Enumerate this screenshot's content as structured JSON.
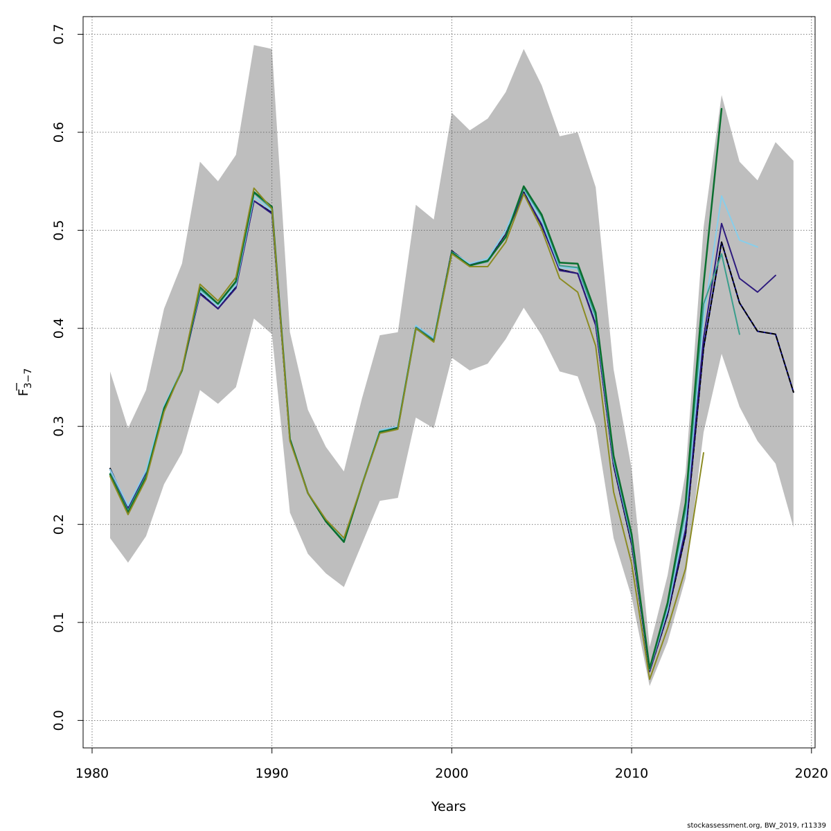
{
  "chart_data": {
    "type": "line",
    "xlabel": "Years",
    "ylabel": {
      "base": "F",
      "sub": "3−7"
    },
    "xlim": [
      1979.5,
      2020.2
    ],
    "ylim": [
      -0.028,
      0.718
    ],
    "xticks": [
      "1980",
      "1990",
      "2000",
      "2010",
      "2020"
    ],
    "yticks": [
      "0.0",
      "0.1",
      "0.2",
      "0.3",
      "0.4",
      "0.5",
      "0.6",
      "0.7"
    ],
    "grid": true,
    "footer": "stockassessment.org, BW_2019, r11339",
    "band": {
      "color": "#bebebe",
      "x": [
        1981,
        1982,
        1983,
        1984,
        1985,
        1986,
        1987,
        1988,
        1989,
        1990,
        1991,
        1992,
        1993,
        1994,
        1995,
        1996,
        1997,
        1998,
        1999,
        2000,
        2001,
        2002,
        2003,
        2004,
        2005,
        2006,
        2007,
        2008,
        2009,
        2010,
        2011,
        2012,
        2013,
        2014,
        2015,
        2016,
        2017,
        2018,
        2019
      ],
      "upper": [
        0.356,
        0.298,
        0.337,
        0.42,
        0.466,
        0.57,
        0.55,
        0.577,
        0.689,
        0.685,
        0.396,
        0.317,
        0.279,
        0.254,
        0.328,
        0.393,
        0.396,
        0.526,
        0.511,
        0.62,
        0.602,
        0.614,
        0.641,
        0.685,
        0.648,
        0.596,
        0.6,
        0.544,
        0.358,
        0.257,
        0.075,
        0.148,
        0.253,
        0.503,
        0.638,
        0.57,
        0.551,
        0.59,
        0.571
      ],
      "lower": [
        0.186,
        0.161,
        0.188,
        0.241,
        0.273,
        0.337,
        0.323,
        0.34,
        0.41,
        0.394,
        0.212,
        0.17,
        0.15,
        0.136,
        0.18,
        0.224,
        0.227,
        0.309,
        0.298,
        0.37,
        0.357,
        0.364,
        0.389,
        0.421,
        0.393,
        0.356,
        0.351,
        0.301,
        0.186,
        0.126,
        0.035,
        0.08,
        0.145,
        0.294,
        0.374,
        0.32,
        0.285,
        0.262,
        0.197
      ]
    },
    "series": [
      {
        "color": "#00008b",
        "width": 2,
        "dash": "",
        "x": [
          1981,
          1982,
          1983,
          1984,
          1985,
          1986,
          1987,
          1988,
          1989,
          1990,
          1991,
          1992,
          1993,
          1994,
          1995,
          1996,
          1997,
          1998,
          1999,
          2000,
          2001,
          2002,
          2003,
          2004,
          2005,
          2006,
          2007,
          2008,
          2009,
          2010,
          2011,
          2012,
          2013,
          2014,
          2015,
          2016,
          2017,
          2018,
          2019
        ],
        "y": [
          0.257,
          0.217,
          0.253,
          0.32,
          0.358,
          0.436,
          0.42,
          0.442,
          0.53,
          0.518,
          0.287,
          0.232,
          0.203,
          0.184,
          0.24,
          0.295,
          0.299,
          0.402,
          0.389,
          0.479,
          0.465,
          0.469,
          0.496,
          0.539,
          0.505,
          0.46,
          0.456,
          0.404,
          0.26,
          0.18,
          0.05,
          0.108,
          0.19,
          0.38,
          0.488,
          0.426,
          0.397,
          0.394,
          0.335
        ]
      },
      {
        "color": "#000000",
        "width": 2,
        "dash": "5,4",
        "x": [
          1981,
          1982,
          1983,
          1984,
          1985,
          1986,
          1987,
          1988,
          1989,
          1990,
          1991,
          1992,
          1993,
          1994,
          1995,
          1996,
          1997,
          1998,
          1999,
          2000,
          2001,
          2002,
          2003,
          2004,
          2005,
          2006,
          2007,
          2008,
          2009,
          2010,
          2011,
          2012,
          2013,
          2014,
          2015,
          2016,
          2017,
          2018,
          2019
        ],
        "y": [
          0.257,
          0.217,
          0.253,
          0.32,
          0.358,
          0.436,
          0.42,
          0.442,
          0.53,
          0.518,
          0.287,
          0.232,
          0.203,
          0.184,
          0.24,
          0.295,
          0.299,
          0.402,
          0.389,
          0.479,
          0.465,
          0.469,
          0.496,
          0.539,
          0.505,
          0.46,
          0.456,
          0.404,
          0.26,
          0.18,
          0.05,
          0.108,
          0.19,
          0.38,
          0.488,
          0.426,
          0.397,
          0.394,
          0.335
        ]
      },
      {
        "color": "#2e1b7e",
        "width": 2,
        "dash": "",
        "x": [
          1981,
          1982,
          1983,
          1984,
          1985,
          1986,
          1987,
          1988,
          1989,
          1990,
          1991,
          1992,
          1993,
          1994,
          1995,
          1996,
          1997,
          1998,
          1999,
          2000,
          2001,
          2002,
          2003,
          2004,
          2005,
          2006,
          2007,
          2008,
          2009,
          2010,
          2011,
          2012,
          2013,
          2014,
          2015,
          2016,
          2017,
          2018
        ],
        "y": [
          0.256,
          0.216,
          0.252,
          0.32,
          0.357,
          0.435,
          0.42,
          0.441,
          0.53,
          0.517,
          0.287,
          0.232,
          0.203,
          0.184,
          0.24,
          0.295,
          0.298,
          0.402,
          0.389,
          0.478,
          0.465,
          0.469,
          0.495,
          0.538,
          0.506,
          0.459,
          0.456,
          0.403,
          0.261,
          0.182,
          0.05,
          0.11,
          0.195,
          0.39,
          0.507,
          0.451,
          0.437,
          0.454
        ]
      },
      {
        "color": "#87ceeb",
        "width": 2,
        "dash": "",
        "x": [
          1981,
          1982,
          1983,
          1984,
          1985,
          1986,
          1987,
          1988,
          1989,
          1990,
          1991,
          1992,
          1993,
          1994,
          1995,
          1996,
          1997,
          1998,
          1999,
          2000,
          2001,
          2002,
          2003,
          2004,
          2005,
          2006,
          2007,
          2008,
          2009,
          2010,
          2011,
          2012,
          2013,
          2014,
          2015,
          2016,
          2017
        ],
        "y": [
          0.256,
          0.219,
          0.255,
          0.321,
          0.358,
          0.438,
          0.423,
          0.444,
          0.534,
          0.52,
          0.288,
          0.232,
          0.204,
          0.184,
          0.241,
          0.296,
          0.3,
          0.403,
          0.39,
          0.478,
          0.466,
          0.471,
          0.5,
          0.542,
          0.51,
          0.462,
          0.461,
          0.41,
          0.265,
          0.185,
          0.052,
          0.113,
          0.205,
          0.41,
          0.535,
          0.49,
          0.483
        ]
      },
      {
        "color": "#3a9e8c",
        "width": 2,
        "dash": "",
        "x": [
          1981,
          1982,
          1983,
          1984,
          1985,
          1986,
          1987,
          1988,
          1989,
          1990,
          1991,
          1992,
          1993,
          1994,
          1995,
          1996,
          1997,
          1998,
          1999,
          2000,
          2001,
          2002,
          2003,
          2004,
          2005,
          2006,
          2007,
          2008,
          2009,
          2010,
          2011,
          2012,
          2013,
          2014,
          2015,
          2016
        ],
        "y": [
          0.252,
          0.214,
          0.25,
          0.319,
          0.357,
          0.44,
          0.425,
          0.447,
          0.538,
          0.522,
          0.287,
          0.232,
          0.203,
          0.183,
          0.24,
          0.295,
          0.298,
          0.401,
          0.388,
          0.478,
          0.464,
          0.468,
          0.494,
          0.543,
          0.514,
          0.464,
          0.462,
          0.412,
          0.267,
          0.187,
          0.052,
          0.117,
          0.215,
          0.425,
          0.476,
          0.394
        ]
      },
      {
        "color": "#0a6e2e",
        "width": 2.5,
        "dash": "",
        "x": [
          1981,
          1982,
          1983,
          1984,
          1985,
          1986,
          1987,
          1988,
          1989,
          1990,
          1991,
          1992,
          1993,
          1994,
          1995,
          1996,
          1997,
          1998,
          1999,
          2000,
          2001,
          2002,
          2003,
          2004,
          2005,
          2006,
          2007,
          2008,
          2009,
          2010,
          2011,
          2012,
          2013,
          2014,
          2015
        ],
        "y": [
          0.251,
          0.212,
          0.248,
          0.318,
          0.357,
          0.442,
          0.425,
          0.448,
          0.539,
          0.524,
          0.287,
          0.232,
          0.203,
          0.182,
          0.24,
          0.294,
          0.298,
          0.4,
          0.387,
          0.477,
          0.464,
          0.469,
          0.493,
          0.545,
          0.516,
          0.467,
          0.466,
          0.416,
          0.27,
          0.19,
          0.053,
          0.12,
          0.222,
          0.445,
          0.624
        ]
      },
      {
        "color": "#8b8b22",
        "width": 2,
        "dash": "",
        "x": [
          1981,
          1982,
          1983,
          1984,
          1985,
          1986,
          1987,
          1988,
          1989,
          1990,
          1991,
          1992,
          1993,
          1994,
          1995,
          1996,
          1997,
          1998,
          1999,
          2000,
          2001,
          2002,
          2003,
          2004,
          2005,
          2006,
          2007,
          2008,
          2009,
          2010,
          2011,
          2012,
          2013,
          2014
        ],
        "y": [
          0.249,
          0.21,
          0.246,
          0.315,
          0.358,
          0.445,
          0.428,
          0.452,
          0.543,
          0.522,
          0.285,
          0.232,
          0.205,
          0.186,
          0.24,
          0.293,
          0.297,
          0.4,
          0.386,
          0.476,
          0.463,
          0.463,
          0.488,
          0.537,
          0.501,
          0.451,
          0.437,
          0.382,
          0.233,
          0.16,
          0.042,
          0.094,
          0.155,
          0.273
        ]
      }
    ]
  }
}
